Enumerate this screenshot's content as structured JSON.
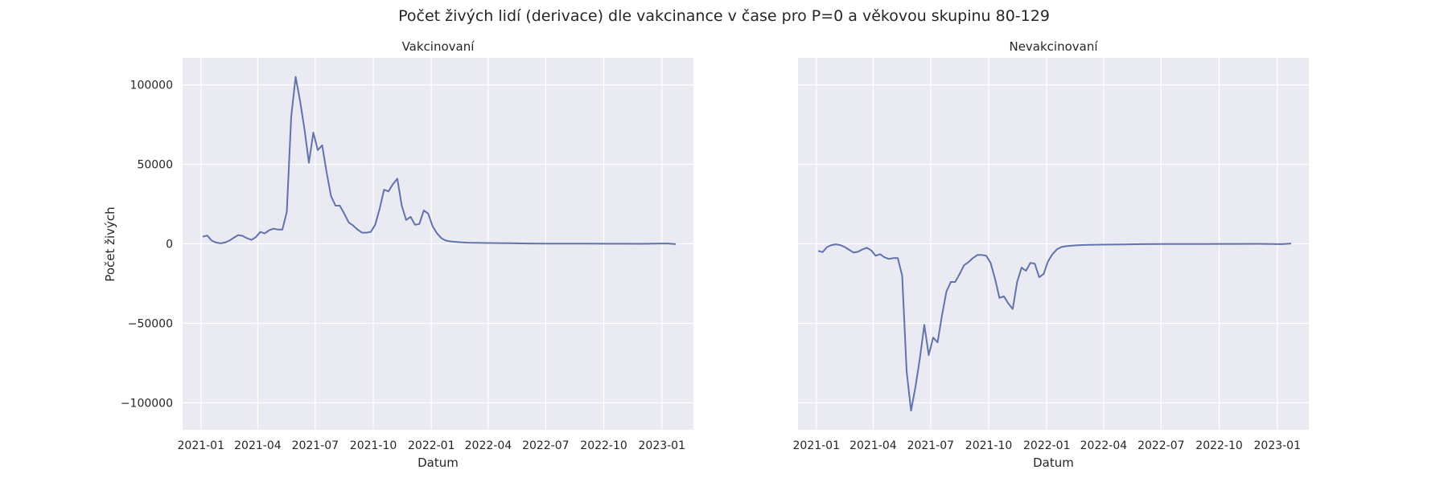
{
  "figure": {
    "title": "Počet živých lidí (derivace) dle vakcinance v čase pro P=0 a věkovou skupinu 80-129"
  },
  "chart_data": [
    {
      "type": "line",
      "title": "Vakcinovaní",
      "xlabel": "Datum",
      "ylabel": "Počet živých",
      "x_ticks": [
        "2021-01",
        "2021-04",
        "2021-07",
        "2021-10",
        "2022-01",
        "2022-04",
        "2022-07",
        "2022-10",
        "2023-01"
      ],
      "y_ticks": [
        100000,
        50000,
        0,
        -50000,
        -100000
      ],
      "y_tick_labels": [
        "100000",
        "50000",
        "0",
        "−50000",
        "−100000"
      ],
      "ylim": [
        -117000,
        117000
      ],
      "xlim": [
        "2020-12-03",
        "2023-02-20"
      ],
      "grid": true,
      "series": [
        {
          "color": "#6272ab",
          "x": [
            "2021-01-04",
            "2021-01-11",
            "2021-01-18",
            "2021-01-25",
            "2021-02-01",
            "2021-02-08",
            "2021-02-15",
            "2021-02-22",
            "2021-03-01",
            "2021-03-08",
            "2021-03-15",
            "2021-03-22",
            "2021-03-29",
            "2021-04-05",
            "2021-04-12",
            "2021-04-19",
            "2021-04-26",
            "2021-05-03",
            "2021-05-10",
            "2021-05-17",
            "2021-05-24",
            "2021-05-31",
            "2021-06-07",
            "2021-06-14",
            "2021-06-21",
            "2021-06-28",
            "2021-07-05",
            "2021-07-12",
            "2021-07-19",
            "2021-07-26",
            "2021-08-02",
            "2021-08-09",
            "2021-08-16",
            "2021-08-23",
            "2021-08-30",
            "2021-09-06",
            "2021-09-13",
            "2021-09-20",
            "2021-09-27",
            "2021-10-04",
            "2021-10-11",
            "2021-10-18",
            "2021-10-25",
            "2021-11-01",
            "2021-11-08",
            "2021-11-15",
            "2021-11-22",
            "2021-11-29",
            "2021-12-06",
            "2021-12-13",
            "2021-12-20",
            "2021-12-27",
            "2022-01-03",
            "2022-01-10",
            "2022-01-17",
            "2022-01-24",
            "2022-01-31",
            "2022-02-14",
            "2022-03-01",
            "2022-04-01",
            "2022-05-01",
            "2022-06-01",
            "2022-07-01",
            "2022-08-01",
            "2022-09-01",
            "2022-10-01",
            "2022-11-01",
            "2022-12-01",
            "2023-01-01",
            "2023-01-10",
            "2023-01-23"
          ],
          "y": [
            4500,
            5200,
            2000,
            800,
            300,
            800,
            2000,
            3800,
            5500,
            5000,
            3500,
            2500,
            4200,
            7500,
            6500,
            8500,
            9500,
            9000,
            9000,
            20000,
            80000,
            105000,
            90000,
            72000,
            51000,
            70000,
            59000,
            62000,
            45000,
            30000,
            24000,
            24000,
            19000,
            13500,
            11500,
            9000,
            7000,
            7000,
            7500,
            12000,
            22000,
            34000,
            33000,
            37500,
            41000,
            24000,
            15000,
            17000,
            12000,
            12500,
            21000,
            19000,
            11000,
            6500,
            3500,
            2000,
            1500,
            1000,
            700,
            500,
            400,
            200,
            150,
            100,
            100,
            50,
            50,
            0,
            200,
            200,
            -200
          ]
        }
      ]
    },
    {
      "type": "line",
      "title": "Nevakcinovaní",
      "xlabel": "Datum",
      "ylabel": "",
      "x_ticks": [
        "2021-01",
        "2021-04",
        "2021-07",
        "2021-10",
        "2022-01",
        "2022-04",
        "2022-07",
        "2022-10",
        "2023-01"
      ],
      "ylim": [
        -117000,
        117000
      ],
      "xlim": [
        "2020-12-03",
        "2023-02-20"
      ],
      "grid": true,
      "series": [
        {
          "color": "#6272ab",
          "x": [
            "2021-01-04",
            "2021-01-11",
            "2021-01-18",
            "2021-01-25",
            "2021-02-01",
            "2021-02-08",
            "2021-02-15",
            "2021-02-22",
            "2021-03-01",
            "2021-03-08",
            "2021-03-15",
            "2021-03-22",
            "2021-03-29",
            "2021-04-05",
            "2021-04-12",
            "2021-04-19",
            "2021-04-26",
            "2021-05-03",
            "2021-05-10",
            "2021-05-17",
            "2021-05-24",
            "2021-05-31",
            "2021-06-07",
            "2021-06-14",
            "2021-06-21",
            "2021-06-28",
            "2021-07-05",
            "2021-07-12",
            "2021-07-19",
            "2021-07-26",
            "2021-08-02",
            "2021-08-09",
            "2021-08-16",
            "2021-08-23",
            "2021-08-30",
            "2021-09-06",
            "2021-09-13",
            "2021-09-20",
            "2021-09-27",
            "2021-10-04",
            "2021-10-11",
            "2021-10-18",
            "2021-10-25",
            "2021-11-01",
            "2021-11-08",
            "2021-11-15",
            "2021-11-22",
            "2021-11-29",
            "2021-12-06",
            "2021-12-13",
            "2021-12-20",
            "2021-12-27",
            "2022-01-03",
            "2022-01-10",
            "2022-01-17",
            "2022-01-24",
            "2022-01-31",
            "2022-02-14",
            "2022-03-01",
            "2022-04-01",
            "2022-05-01",
            "2022-06-01",
            "2022-07-01",
            "2022-08-01",
            "2022-09-01",
            "2022-10-01",
            "2022-11-01",
            "2022-12-01",
            "2023-01-01",
            "2023-01-10",
            "2023-01-23"
          ],
          "y": [
            -4500,
            -5200,
            -2000,
            -800,
            -300,
            -800,
            -2000,
            -3800,
            -5500,
            -5000,
            -3500,
            -2500,
            -4200,
            -7500,
            -6500,
            -8500,
            -9500,
            -9000,
            -9000,
            -20000,
            -80000,
            -105000,
            -90000,
            -72000,
            -51000,
            -70000,
            -59000,
            -62000,
            -45000,
            -30000,
            -24000,
            -24000,
            -19000,
            -13500,
            -11500,
            -9000,
            -7000,
            -7000,
            -7500,
            -12000,
            -22000,
            -34000,
            -33000,
            -37500,
            -41000,
            -24000,
            -15000,
            -17000,
            -12000,
            -12500,
            -21000,
            -19000,
            -11000,
            -6500,
            -3500,
            -2000,
            -1500,
            -1000,
            -700,
            -500,
            -400,
            -200,
            -150,
            -100,
            -100,
            -50,
            -50,
            0,
            -200,
            -200,
            200
          ]
        }
      ]
    }
  ]
}
